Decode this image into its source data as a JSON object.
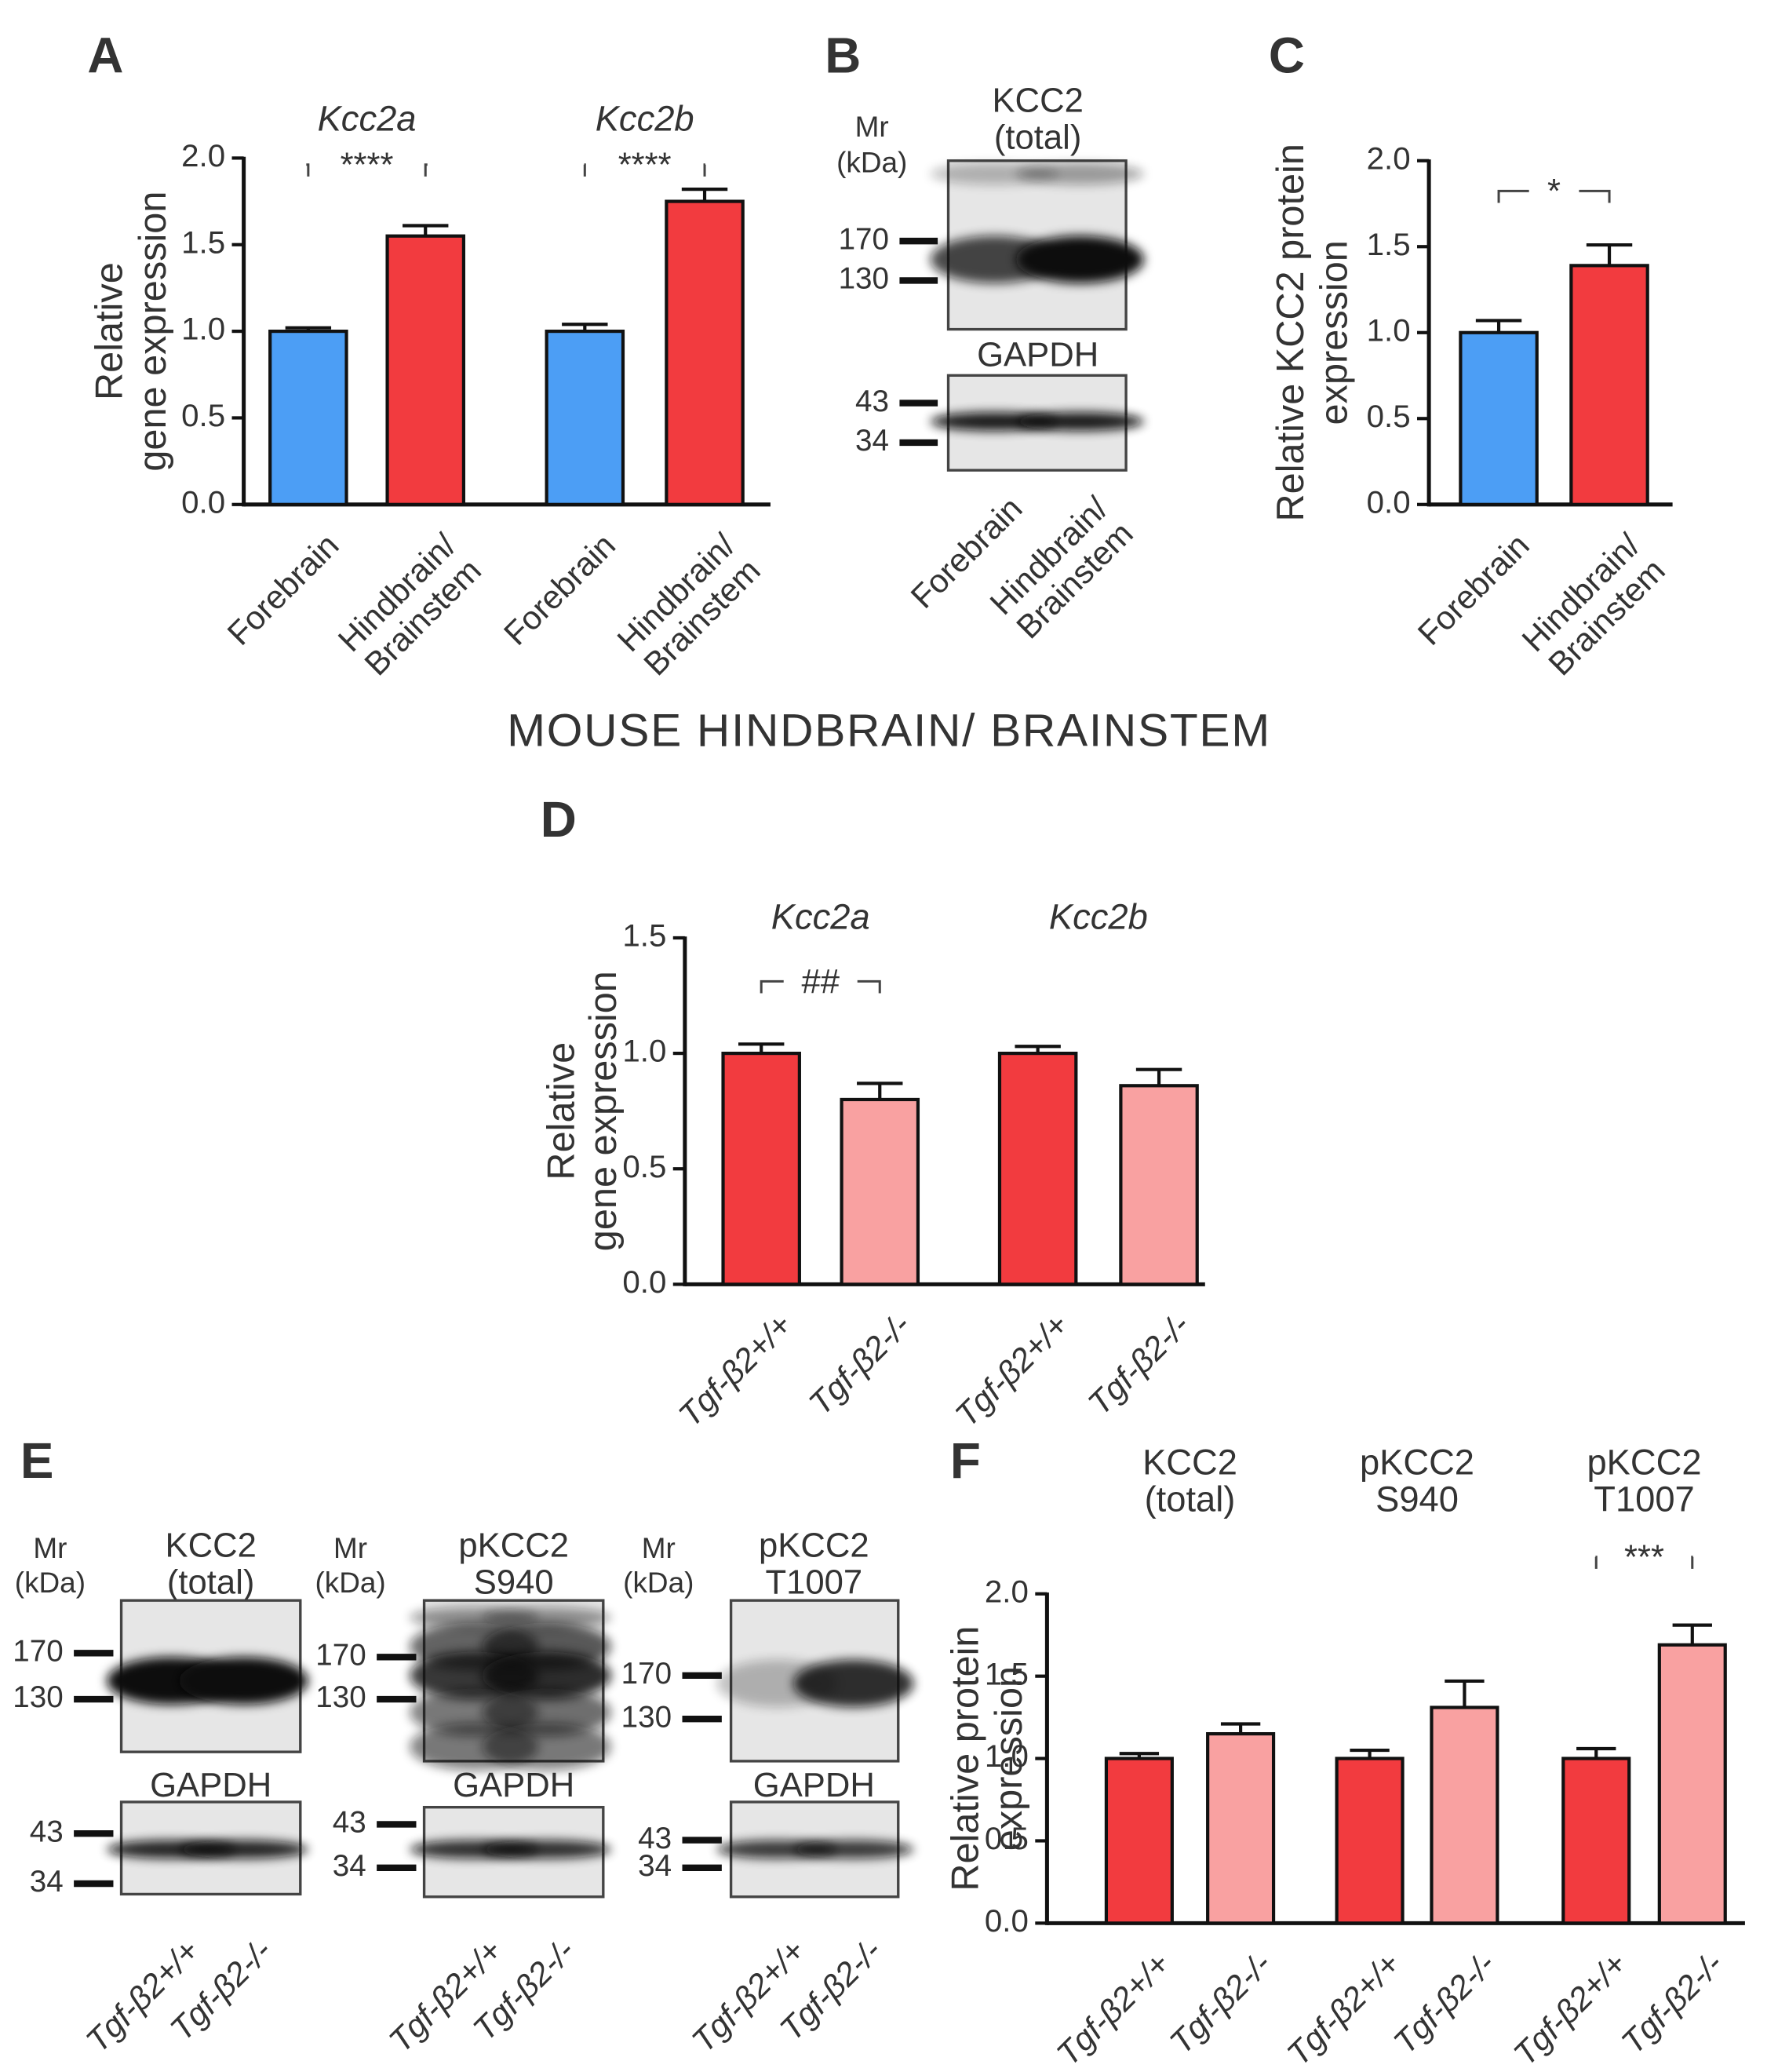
{
  "section_title": "MOUSE HINDBRAIN/ BRAINSTEM",
  "chart_data": [
    {
      "type": "bar",
      "panel": "A",
      "ylabel": [
        "Relative",
        "gene expression"
      ],
      "ylim": [
        0,
        2
      ],
      "yticks": [
        {
          "value": 0,
          "label": "0.0"
        },
        0.5,
        {
          "value": 1,
          "label": "1.0"
        },
        1.5,
        {
          "value": 2,
          "label": "2.0"
        }
      ],
      "colors": [
        "#4c9ef5",
        "#f23b3f"
      ],
      "groups": [
        {
          "label": [
            "Kcc2a"
          ],
          "categories": [
            [
              "Forebrain"
            ],
            [
              "Hindbrain/",
              "Brainstem"
            ]
          ],
          "values": [
            1.0,
            1.55
          ],
          "errors": [
            0.02,
            0.06
          ],
          "significance": "****"
        },
        {
          "label": [
            "Kcc2b"
          ],
          "categories": [
            [
              "Forebrain"
            ],
            [
              "Hindbrain/",
              "Brainstem"
            ]
          ],
          "values": [
            1.0,
            1.75
          ],
          "errors": [
            0.04,
            0.07
          ],
          "significance": "****"
        }
      ]
    },
    {
      "type": "bar",
      "panel": "C",
      "ylabel": [
        "Relative KCC2 protein",
        "expression"
      ],
      "ylim": [
        0,
        2
      ],
      "yticks": [
        {
          "value": 0,
          "label": "0.0"
        },
        0.5,
        {
          "value": 1,
          "label": "1.0"
        },
        1.5,
        {
          "value": 2,
          "label": "2.0"
        }
      ],
      "colors": [
        "#4c9ef5",
        "#f23b3f"
      ],
      "groups": [
        {
          "categories": [
            [
              "Forebrain"
            ],
            [
              "Hindbrain/",
              "Brainstem"
            ]
          ],
          "values": [
            1.0,
            1.39
          ],
          "errors": [
            0.07,
            0.12
          ],
          "significance": "*"
        }
      ]
    },
    {
      "type": "bar",
      "panel": "D",
      "ylabel": [
        "Relative",
        "gene expression"
      ],
      "ylim": [
        0,
        1.5
      ],
      "yticks": [
        {
          "value": 0,
          "label": "0.0"
        },
        0.5,
        {
          "value": 1,
          "label": "1.0"
        },
        1.5
      ],
      "colors": [
        "#f23b3f",
        "#f9a1a1"
      ],
      "groups": [
        {
          "label": [
            "Kcc2a"
          ],
          "categories": [
            "Tgf-β2+/+",
            "Tgf-β2-/-"
          ],
          "values": [
            1.0,
            0.8
          ],
          "errors": [
            0.04,
            0.07
          ],
          "significance": "##"
        },
        {
          "label": [
            "Kcc2b"
          ],
          "categories": [
            "Tgf-β2+/+",
            "Tgf-β2-/-"
          ],
          "values": [
            1.0,
            0.86
          ],
          "errors": [
            0.03,
            0.07
          ]
        }
      ]
    },
    {
      "type": "bar",
      "panel": "F",
      "ylabel": [
        "Relative protein",
        "expression"
      ],
      "ylim": [
        0,
        2
      ],
      "yticks": [
        {
          "value": 0,
          "label": "0.0"
        },
        0.5,
        {
          "value": 1,
          "label": "1.0"
        },
        1.5,
        {
          "value": 2,
          "label": "2.0"
        }
      ],
      "colors": [
        "#f23b3f",
        "#f9a1a1"
      ],
      "groups": [
        {
          "label": [
            "KCC2",
            "(total)"
          ],
          "categories": [
            "Tgf-β2+/+",
            "Tgf-β2-/-"
          ],
          "values": [
            1.0,
            1.15
          ],
          "errors": [
            0.03,
            0.06
          ]
        },
        {
          "label": [
            "pKCC2",
            "S940"
          ],
          "categories": [
            "Tgf-β2+/+",
            "Tgf-β2-/-"
          ],
          "values": [
            1.0,
            1.31
          ],
          "errors": [
            0.05,
            0.16
          ]
        },
        {
          "label": [
            "pKCC2",
            "T1007"
          ],
          "categories": [
            "Tgf-β2+/+",
            "Tgf-β2-/-"
          ],
          "values": [
            1.0,
            1.69
          ],
          "errors": [
            0.06,
            0.12
          ],
          "significance": "***"
        }
      ]
    }
  ],
  "blots": [
    {
      "panel": "B",
      "mr": [
        "Mr",
        "(kDa)"
      ],
      "target": [
        "KCC2",
        "(total)"
      ],
      "target_markers": [
        170,
        130
      ],
      "loading": "GAPDH",
      "loading_markers": [
        43,
        34
      ],
      "lanes": [
        [
          "Forebrain"
        ],
        [
          "Hindbrain/",
          "Brainstem"
        ]
      ]
    },
    {
      "panel": "E",
      "mr": [
        "Mr",
        "(kDa)"
      ],
      "target": [
        "KCC2",
        "(total)"
      ],
      "target_markers": [
        170,
        130
      ],
      "loading": "GAPDH",
      "loading_markers": [
        43,
        34
      ],
      "lanes": [
        "Tgf-β2+/+",
        "Tgf-β2-/-"
      ]
    },
    {
      "mr": [
        "Mr",
        "(kDa)"
      ],
      "target": [
        "pKCC2",
        "S940"
      ],
      "target_markers": [
        170,
        130
      ],
      "loading": "GAPDH",
      "loading_markers": [
        43,
        34
      ],
      "lanes": [
        "Tgf-β2+/+",
        "Tgf-β2-/-"
      ]
    },
    {
      "mr": [
        "Mr",
        "(kDa)"
      ],
      "target": [
        "pKCC2",
        "T1007"
      ],
      "target_markers": [
        170,
        130
      ],
      "loading": "GAPDH",
      "loading_markers": [
        43,
        34
      ],
      "lanes": [
        "Tgf-β2+/+",
        "Tgf-β2-/-"
      ]
    }
  ]
}
